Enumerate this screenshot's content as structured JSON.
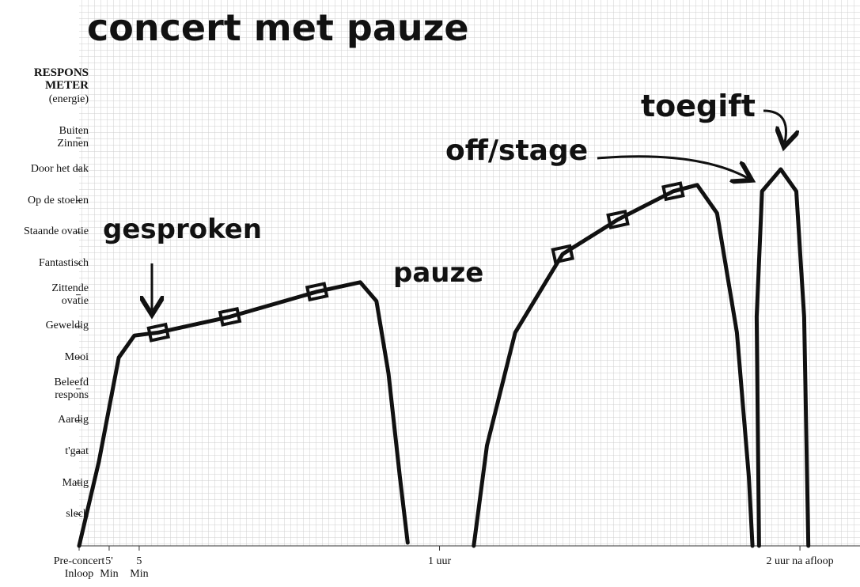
{
  "chart_data": {
    "type": "line",
    "title": "concert met pauze",
    "y_axis_title": "RESPONS\nMETER",
    "y_axis_subtitle": "(energie)",
    "annotations": [
      "gesproken",
      "pauze",
      "off/stage",
      "toegift"
    ],
    "xlim": [
      0,
      130
    ],
    "ylim": [
      0,
      15
    ],
    "xticks": [
      {
        "value": 0,
        "label": "Pre-concert\nInloop"
      },
      {
        "value": 5,
        "label": "5'\nMin"
      },
      {
        "value": 10,
        "label": "5\nMin"
      },
      {
        "value": 60,
        "label": "1 uur"
      },
      {
        "value": 120,
        "label": "2 uur na afloop"
      }
    ],
    "yticks": [
      {
        "value": 1,
        "label": "slech"
      },
      {
        "value": 2,
        "label": "Matig"
      },
      {
        "value": 3,
        "label": "t'gaat"
      },
      {
        "value": 4,
        "label": "Aardig"
      },
      {
        "value": 5,
        "label": "Beleefd\nrespons"
      },
      {
        "value": 6,
        "label": "Mooi"
      },
      {
        "value": 7,
        "label": "Geweldig"
      },
      {
        "value": 8,
        "label": "Zittende\novatie"
      },
      {
        "value": 9,
        "label": "Fantastisch"
      },
      {
        "value": 10,
        "label": "Staande ovatie"
      },
      {
        "value": 11,
        "label": "Op de stoelen"
      },
      {
        "value": 12,
        "label": "Door het dak"
      },
      {
        "value": 13,
        "label": "Buiten\nZinnen"
      }
    ],
    "x": [
      0,
      3.3,
      6.6,
      9.2,
      13.2,
      25.1,
      39.6,
      46.8,
      49.5,
      51.5,
      53.4,
      54.7,
      null,
      65.7,
      67.9,
      72.6,
      80.5,
      89.7,
      98.9,
      102.9,
      106.2,
      109.5,
      111.5,
      112.1,
      null,
      113.2,
      112.8,
      113.7,
      116.8,
      119.4,
      120.7,
      121.4
    ],
    "series": [
      {
        "color": "#111111",
        "values": [
          0,
          2.7,
          6.0,
          6.7,
          6.8,
          7.3,
          8.1,
          8.4,
          7.8,
          5.5,
          2.2,
          0.1,
          null,
          0,
          3.2,
          6.8,
          9.3,
          10.4,
          11.3,
          11.5,
          10.6,
          6.8,
          2.2,
          0,
          null,
          0,
          7.3,
          11.3,
          12.0,
          11.3,
          7.3,
          0
        ]
      }
    ],
    "markers": {
      "x": [
        13.2,
        25.1,
        39.6,
        80.5,
        89.7,
        98.9
      ],
      "y": [
        6.8,
        7.3,
        8.1,
        9.3,
        10.4,
        11.3
      ]
    }
  }
}
